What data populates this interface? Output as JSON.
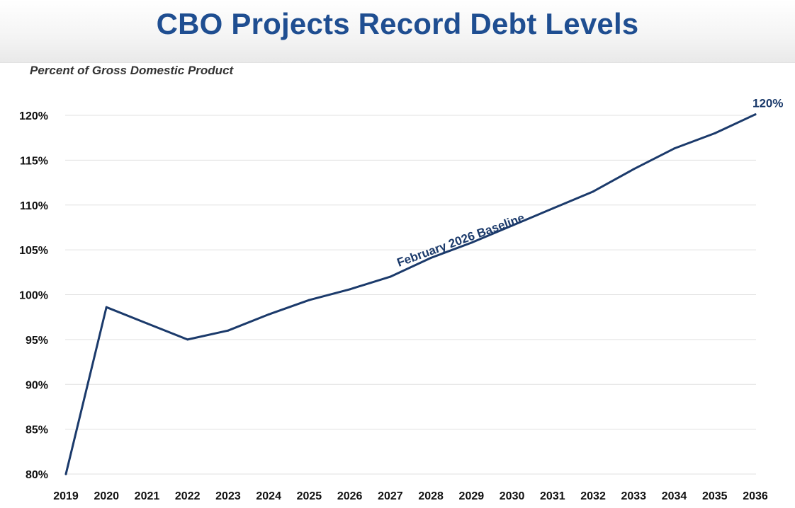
{
  "header": {
    "title": "CBO Projects Record Debt Levels",
    "subtitle": "Percent of Gross Domestic Product"
  },
  "chart_data": {
    "type": "line",
    "title": "CBO Projects Record Debt Levels",
    "ylabel": "Percent of Gross Domestic Product",
    "xlabel": "",
    "x": [
      "2019",
      "2020",
      "2021",
      "2022",
      "2023",
      "2024",
      "2025",
      "2026",
      "2027",
      "2028",
      "2029",
      "2030",
      "2031",
      "2032",
      "2033",
      "2034",
      "2035",
      "2036"
    ],
    "series": [
      {
        "name": "February 2026 Baseline",
        "values": [
          80.0,
          98.6,
          96.8,
          95.0,
          96.0,
          97.8,
          99.4,
          100.6,
          102.0,
          104.1,
          105.8,
          107.7,
          109.6,
          111.5,
          114.0,
          116.3,
          118.0,
          120.1
        ]
      }
    ],
    "ylim": [
      80,
      120
    ],
    "yticks": [
      80,
      85,
      90,
      95,
      100,
      105,
      110,
      115,
      120
    ],
    "ytick_labels": [
      "80%",
      "85%",
      "90%",
      "95%",
      "100%",
      "105%",
      "110%",
      "115%",
      "120%"
    ],
    "grid": true,
    "annotations": {
      "series_label": "February 2026 Baseline",
      "end_value_label": "120%"
    }
  }
}
